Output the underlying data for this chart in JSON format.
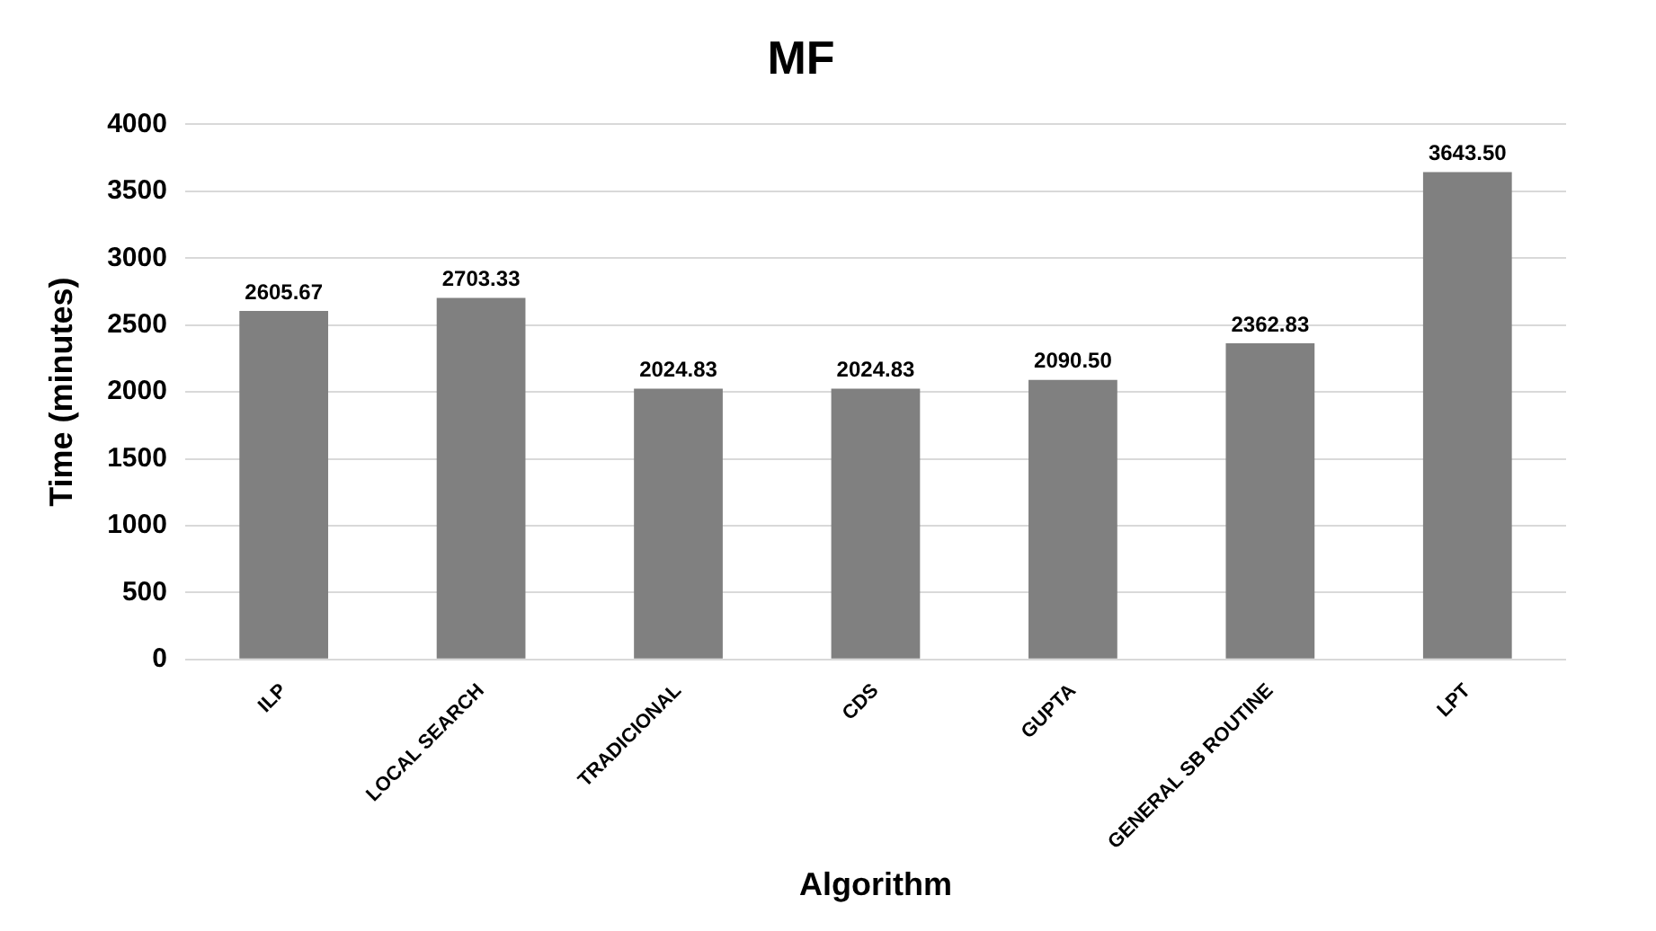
{
  "chart_data": {
    "type": "bar",
    "title": "MF",
    "xlabel": "Algorithm",
    "ylabel": "Time (minutes)",
    "categories": [
      "ILP",
      "LOCAL SEARCH",
      "TRADICIONAL",
      "CDS",
      "GUPTA",
      "GENERAL SB ROUTINE",
      "LPT"
    ],
    "values": [
      2605.67,
      2703.33,
      2024.83,
      2024.83,
      2090.5,
      2362.83,
      3643.5
    ],
    "value_labels": [
      "2605.67",
      "2703.33",
      "2024.83",
      "2024.83",
      "2090.50",
      "2362.83",
      "3643.50"
    ],
    "color": "#808080",
    "ylim": [
      0,
      4000
    ],
    "yticks": [
      0,
      500,
      1000,
      1500,
      2000,
      2500,
      3000,
      3500,
      4000
    ],
    "grid": "y",
    "legend": false
  }
}
